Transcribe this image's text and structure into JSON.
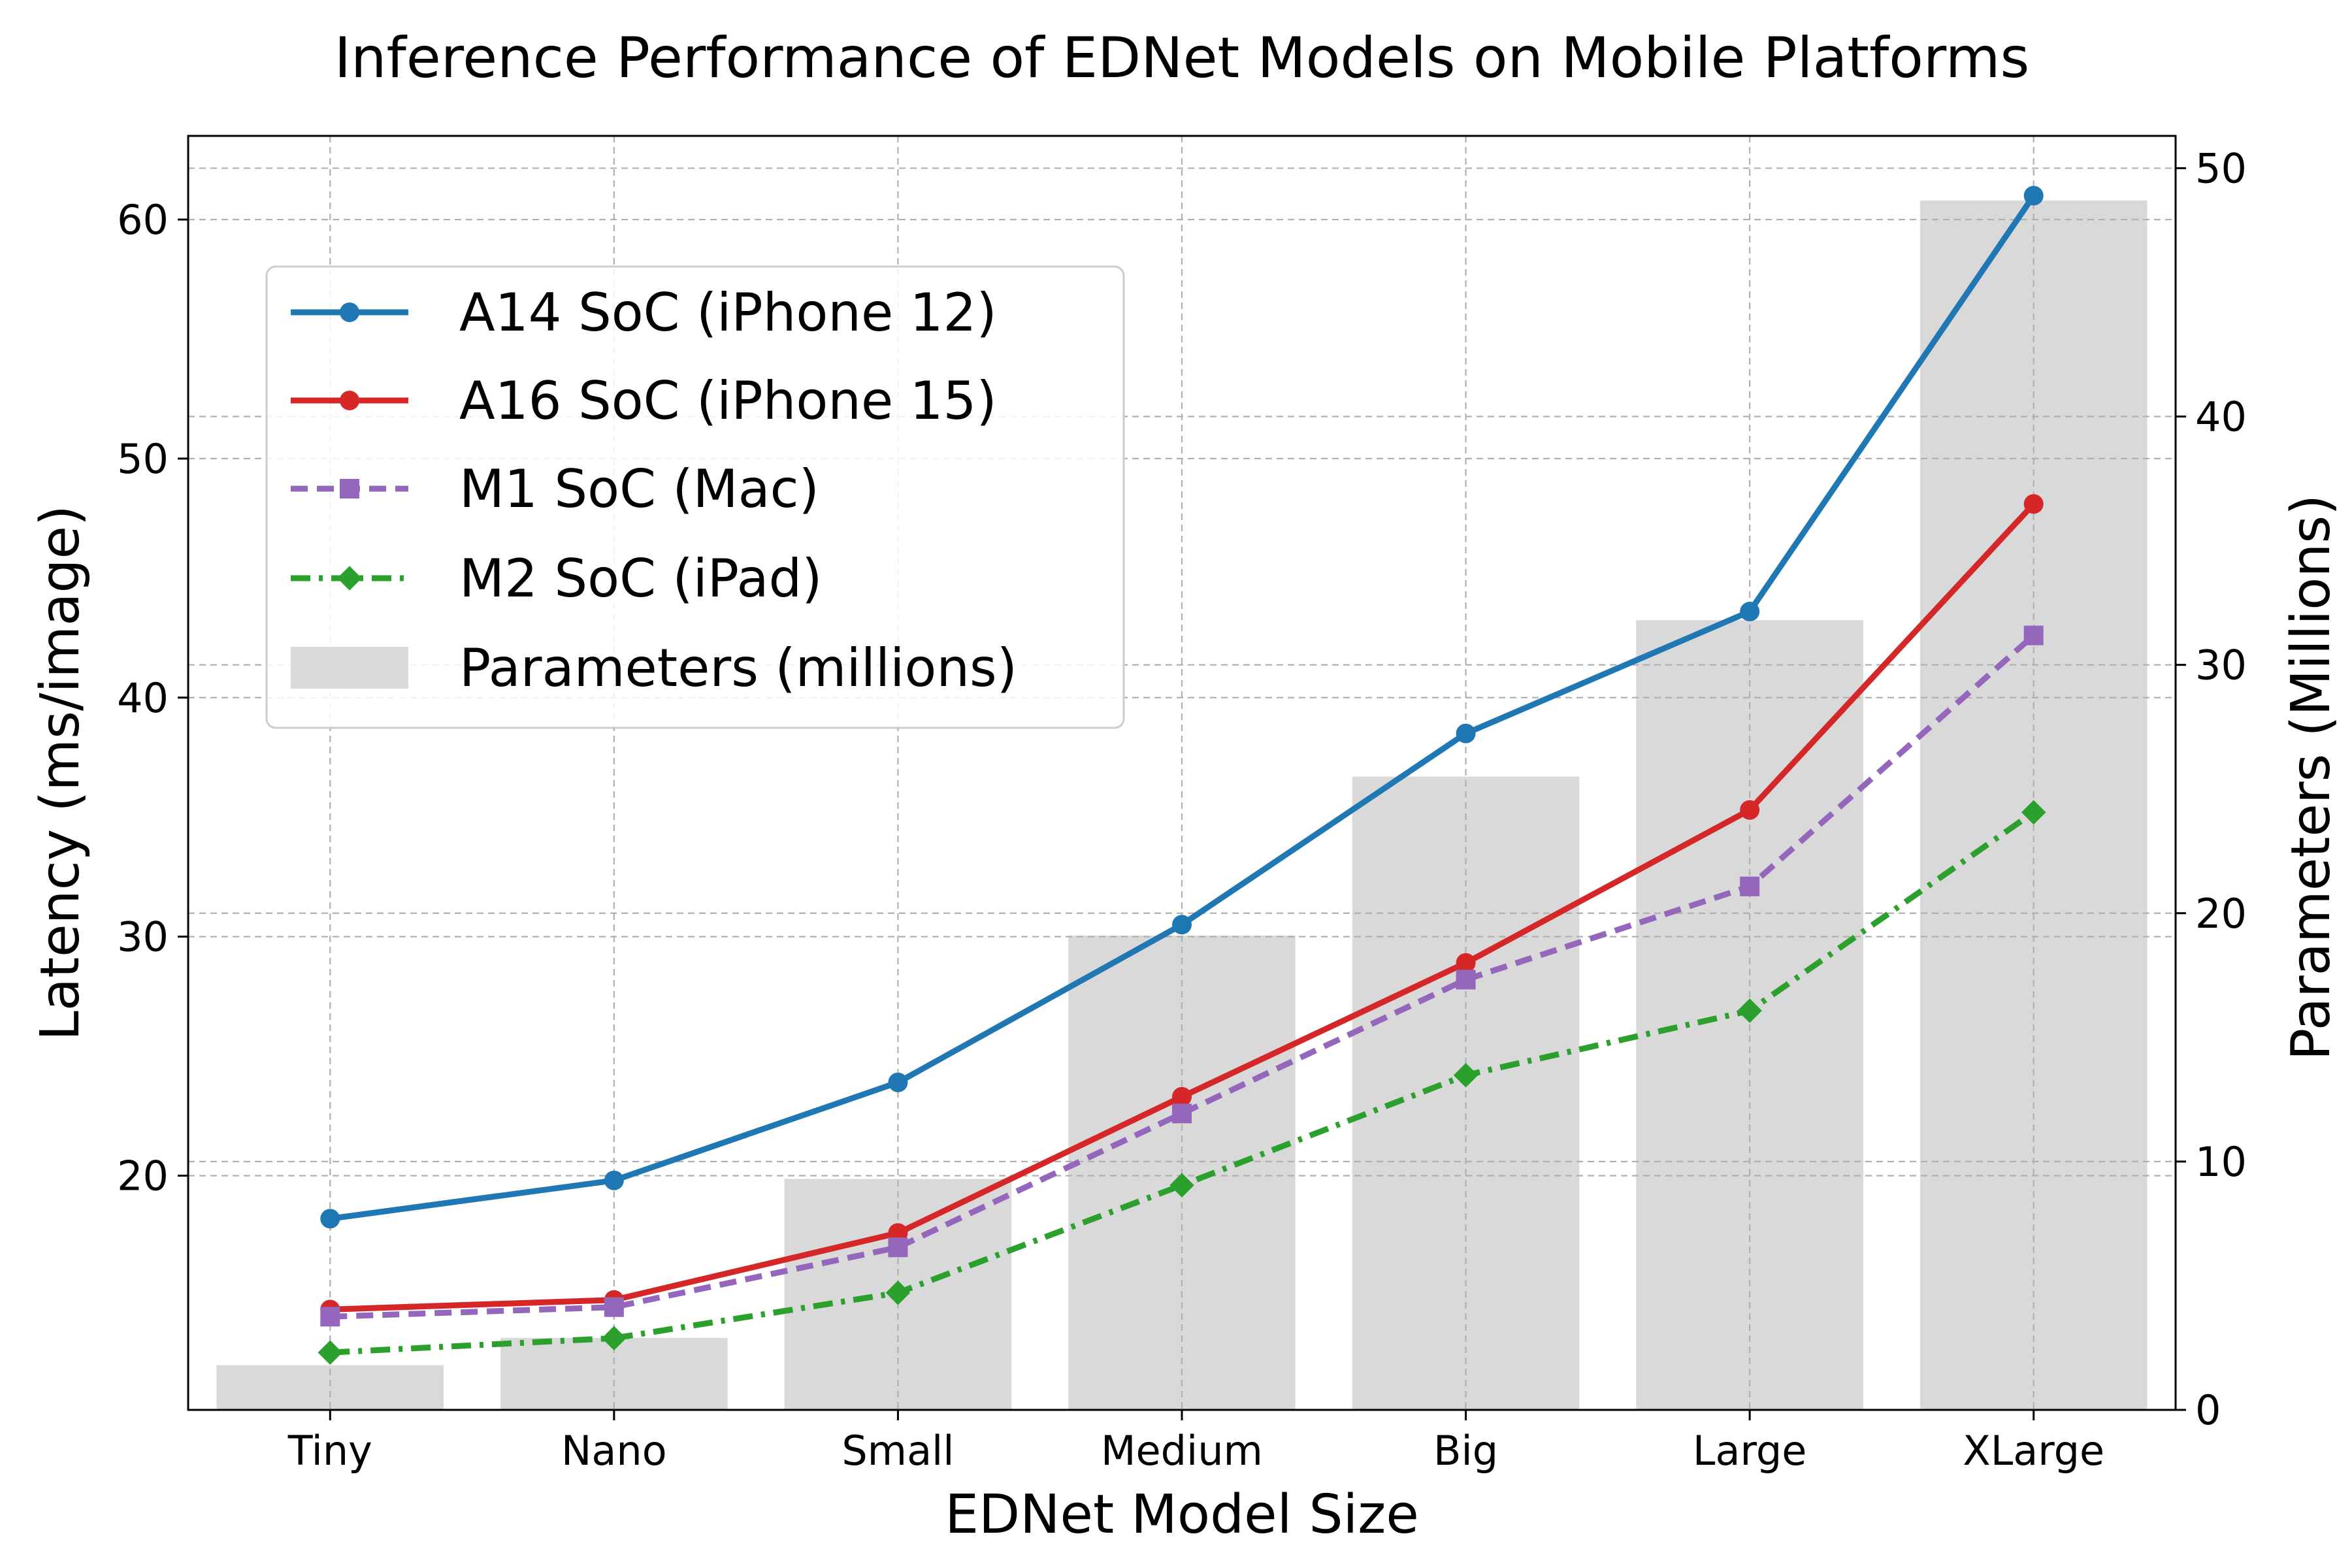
{
  "chart_data": {
    "type": "bar+line",
    "title": "Inference Performance of EDNet Models on Mobile Platforms",
    "xlabel": "EDNet Model Size",
    "ylabel": "Latency (ms/image)",
    "y2label": "Parameters (Millions)",
    "categories": [
      "Tiny",
      "Nano",
      "Small",
      "Medium",
      "Big",
      "Large",
      "XLarge"
    ],
    "ylim": [
      10.2,
      63.5
    ],
    "y2lim": [
      0,
      51.3
    ],
    "yticks": [
      "20",
      "30",
      "40",
      "50",
      "60"
    ],
    "y2ticks": [
      "0",
      "10",
      "20",
      "30",
      "40",
      "50"
    ],
    "series": [
      {
        "name": "A14 SoC (iPhone 12)",
        "color": "#1f77b4",
        "style": "solid",
        "marker": "circle",
        "values": [
          18.2,
          19.8,
          23.9,
          30.5,
          38.5,
          43.6,
          61.0
        ]
      },
      {
        "name": "A16 SoC (iPhone 15)",
        "color": "#d62728",
        "style": "solid",
        "marker": "circle",
        "values": [
          14.4,
          14.8,
          17.6,
          23.3,
          28.9,
          35.3,
          48.1
        ]
      },
      {
        "name": "M1 SoC (Mac)",
        "color": "#9467bd",
        "style": "dashed",
        "marker": "square",
        "values": [
          14.1,
          14.5,
          17.0,
          22.6,
          28.2,
          32.1,
          42.6
        ]
      },
      {
        "name": "M2 SoC (iPad)",
        "color": "#2ca02c",
        "style": "dashdot",
        "marker": "diamond",
        "values": [
          12.6,
          13.2,
          15.1,
          19.6,
          24.2,
          26.9,
          35.2
        ]
      }
    ],
    "bars": {
      "name": "Parameters (millions)",
      "color": "#d9d9d9",
      "values": [
        1.8,
        2.9,
        9.3,
        19.1,
        25.5,
        31.8,
        48.7
      ]
    },
    "legend_position": "upper-left",
    "grid": true
  }
}
